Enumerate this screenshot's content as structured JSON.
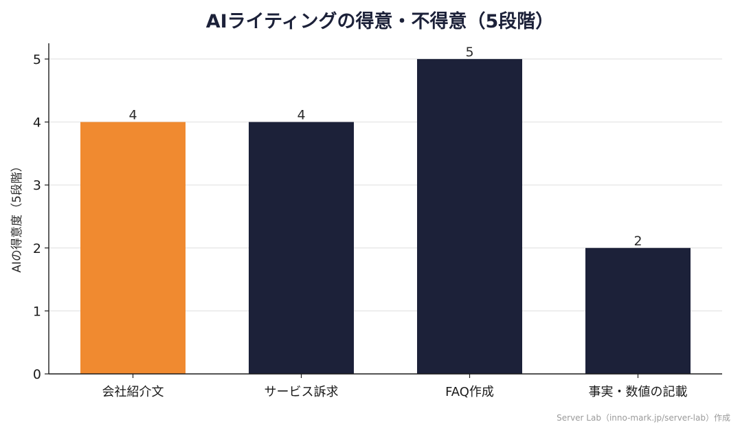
{
  "chart_data": {
    "type": "bar",
    "title": "AIライティングの得意・不得意（5段階）",
    "xlabel": "",
    "ylabel": "AIの得意度（5段階）",
    "categories": [
      "会社紹介文",
      "サービス訴求",
      "FAQ作成",
      "事実・数値の記載"
    ],
    "values": [
      4,
      4,
      5,
      2
    ],
    "bar_colors": [
      "#f08a30",
      "#1c2139",
      "#1c2139",
      "#1c2139"
    ],
    "ylim": [
      0,
      5.25
    ],
    "yticks": [
      "0",
      "1",
      "2",
      "3",
      "4",
      "5"
    ],
    "grid": "horizontal",
    "legend": "none"
  },
  "footer": {
    "credit": "Server Lab（inno-mark.jp/server-lab）作成"
  }
}
